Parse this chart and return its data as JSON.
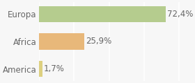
{
  "categories": [
    "America",
    "Africa",
    "Europa"
  ],
  "values": [
    1.7,
    25.9,
    72.4
  ],
  "colors": [
    "#ddd080",
    "#e8b87a",
    "#b5cc8e"
  ],
  "labels": [
    "1,7%",
    "25,9%",
    "72,4%"
  ],
  "xlim": [
    0,
    85
  ],
  "background_color": "#f7f7f7",
  "bar_height": 0.58,
  "label_fontsize": 8.5,
  "tick_fontsize": 8.5,
  "grid_color": "#ffffff",
  "grid_lw": 1.2
}
